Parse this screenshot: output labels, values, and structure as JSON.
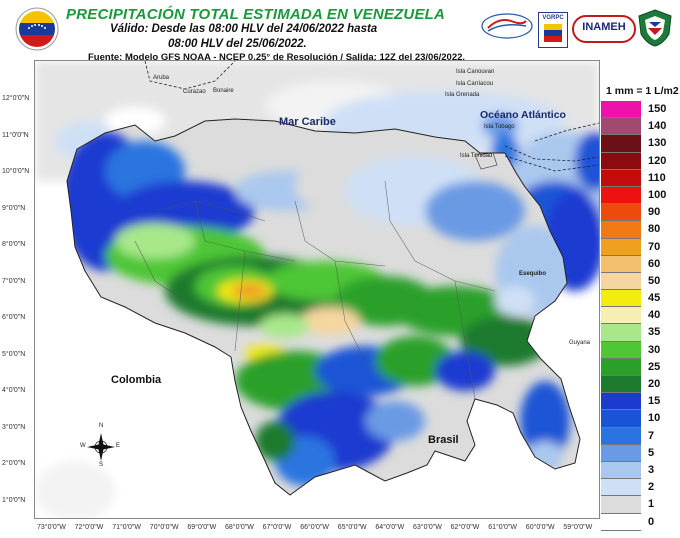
{
  "header": {
    "title": "PRECIPITACIÓN TOTAL ESTIMADA EN VENEZUELA",
    "valid_line1": "Válido: Desde las 08:00 HLV del 24/06/2022 hasta",
    "valid_line2": "08:00 HLV del 25/06/2022.",
    "source": "Fuente: Modelo GFS NOAA - NCEP 0,25° de Resolución / Salida: 12Z del 23/06/2022."
  },
  "logos": {
    "logo2_text": "VGRPC",
    "logo3_text": "INAMEH"
  },
  "map": {
    "labels": {
      "mar_caribe": "Mar Caribe",
      "oceano": "Océano Atlántico",
      "colombia": "Colombia",
      "brasil": "Brasil",
      "guyana": "Guyana",
      "aruba": "Aruba",
      "curazao": "Curazao",
      "bonaire": "Bonaire",
      "isla_canouvan": "Isla Canouvan",
      "isla_carriacou": "Isla Carriacou",
      "isla_grenada": "Isla Grenada",
      "isla_tobago": "Isla Tobago",
      "isla_trinidad": "Isla Trinidad",
      "esequibo": "Esequibo"
    },
    "lat_labels": [
      "12°0'0\"N",
      "11°0'0\"N",
      "10°0'0\"N",
      "9°0'0\"N",
      "8°0'0\"N",
      "7°0'0\"N",
      "6°0'0\"N",
      "5°0'0\"N",
      "4°0'0\"N",
      "3°0'0\"N",
      "2°0'0\"N",
      "1°0'0\"N"
    ],
    "lon_labels": [
      "73°0'0\"W",
      "72°0'0\"W",
      "71°0'0\"W",
      "70°0'0\"W",
      "69°0'0\"W",
      "68°0'0\"W",
      "67°0'0\"W",
      "66°0'0\"W",
      "65°0'0\"W",
      "64°0'0\"W",
      "63°0'0\"W",
      "62°0'0\"W",
      "61°0'0\"W",
      "60°0'0\"W",
      "59°0'0\"W"
    ],
    "compass": {
      "n": "N",
      "s": "S",
      "e": "E",
      "w": "W"
    }
  },
  "legend": {
    "title": "1 mm = 1 L/m2",
    "items": [
      {
        "label": "150",
        "color": "#ee11aa"
      },
      {
        "label": "140",
        "color": "#a04a70"
      },
      {
        "label": "130",
        "color": "#6a1016"
      },
      {
        "label": "120",
        "color": "#8a0c10"
      },
      {
        "label": "110",
        "color": "#c40c0c"
      },
      {
        "label": "100",
        "color": "#ee1111"
      },
      {
        "label": "90",
        "color": "#ee4a0c"
      },
      {
        "label": "80",
        "color": "#f07a12"
      },
      {
        "label": "70",
        "color": "#f0a020"
      },
      {
        "label": "60",
        "color": "#f3c070"
      },
      {
        "label": "50",
        "color": "#f6d6a0"
      },
      {
        "label": "45",
        "color": "#f2ec10"
      },
      {
        "label": "40",
        "color": "#f4f0b4"
      },
      {
        "label": "35",
        "color": "#a8e88a"
      },
      {
        "label": "30",
        "color": "#4ec636"
      },
      {
        "label": "25",
        "color": "#2aa02a"
      },
      {
        "label": "20",
        "color": "#1e7a2e"
      },
      {
        "label": "15",
        "color": "#1a3ad0"
      },
      {
        "label": "10",
        "color": "#1a54d6"
      },
      {
        "label": "7",
        "color": "#2a74e0"
      },
      {
        "label": "5",
        "color": "#6a9ae4"
      },
      {
        "label": "3",
        "color": "#aac8ee"
      },
      {
        "label": "2",
        "color": "#cfe0f6"
      },
      {
        "label": "1",
        "color": "#dcdcdc"
      },
      {
        "label": "0",
        "color": "#ffffff"
      }
    ]
  }
}
